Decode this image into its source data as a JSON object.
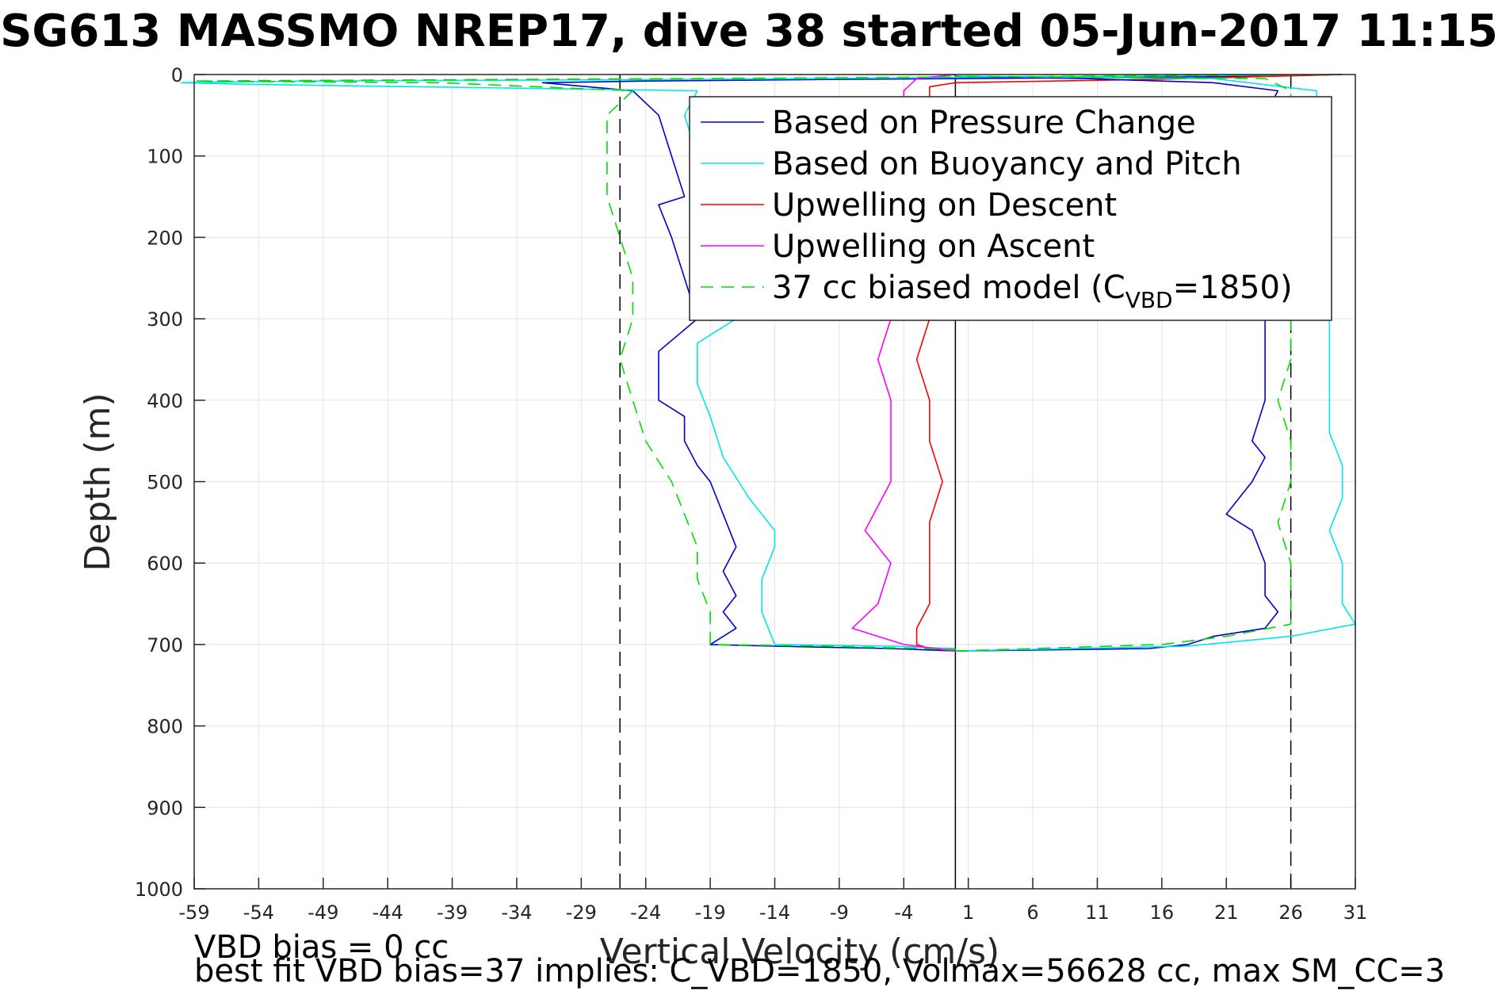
{
  "chart_data": {
    "type": "line",
    "title": "SG613 MASSMO NREP17, dive 38 started 05-Jun-2017 11:15",
    "xlabel": "Vertical Velocity (cm/s)",
    "ylabel": "Depth (m)",
    "xlim": [
      -59,
      31
    ],
    "ylim": [
      0,
      1000
    ],
    "y_reversed": true,
    "xticks": [
      -59,
      -54,
      -49,
      -44,
      -39,
      -34,
      -29,
      -24,
      -19,
      -14,
      -9,
      -4,
      1,
      6,
      11,
      16,
      21,
      26,
      31
    ],
    "yticks": [
      0,
      100,
      200,
      300,
      400,
      500,
      600,
      700,
      800,
      900,
      1000
    ],
    "grid": true,
    "legend_position": "top-right",
    "reference_lines": [
      {
        "kind": "vertical",
        "x": -26,
        "style": "dashed",
        "color": "#000000"
      },
      {
        "kind": "vertical",
        "x": 0,
        "style": "solid",
        "color": "#000000"
      },
      {
        "kind": "vertical",
        "x": 26,
        "style": "dashed",
        "color": "#000000"
      }
    ],
    "series": [
      {
        "name": "Based on Pressure Change",
        "color": "#0000cc",
        "style": "solid",
        "points": [
          [
            30,
            0
          ],
          [
            24,
            2
          ],
          [
            10,
            4
          ],
          [
            -10,
            6
          ],
          [
            -24,
            8
          ],
          [
            -32,
            10
          ],
          [
            -25,
            20
          ],
          [
            -23,
            50
          ],
          [
            -22,
            100
          ],
          [
            -21,
            150
          ],
          [
            -23,
            160
          ],
          [
            -22,
            200
          ],
          [
            -21,
            250
          ],
          [
            -20,
            300
          ],
          [
            -23,
            340
          ],
          [
            -23,
            400
          ],
          [
            -21,
            420
          ],
          [
            -21,
            450
          ],
          [
            -20,
            480
          ],
          [
            -19,
            500
          ],
          [
            -18,
            540
          ],
          [
            -17,
            580
          ],
          [
            -18,
            610
          ],
          [
            -17,
            640
          ],
          [
            -18,
            660
          ],
          [
            -17,
            680
          ],
          [
            -19,
            700
          ],
          [
            -14,
            702
          ],
          [
            -5,
            705
          ],
          [
            0,
            708
          ]
        ]
      },
      {
        "name": "Based on Buoyancy and Pitch",
        "color": "#00e5ee",
        "style": "solid",
        "points": [
          [
            30,
            0
          ],
          [
            -20,
            6
          ],
          [
            -50,
            8
          ],
          [
            -60,
            10
          ],
          [
            -55,
            12
          ],
          [
            -20,
            20
          ],
          [
            -21,
            50
          ],
          [
            -20,
            100
          ],
          [
            -20,
            150
          ],
          [
            -19,
            200
          ],
          [
            -18,
            250
          ],
          [
            -17,
            300
          ],
          [
            -20,
            330
          ],
          [
            -20,
            380
          ],
          [
            -19,
            420
          ],
          [
            -18,
            470
          ],
          [
            -16,
            520
          ],
          [
            -14,
            560
          ],
          [
            -14,
            580
          ],
          [
            -15,
            620
          ],
          [
            -15,
            660
          ],
          [
            -14,
            700
          ],
          [
            -5,
            702
          ],
          [
            0,
            705
          ]
        ]
      },
      {
        "name": "Upwelling on Descent",
        "color": "#ff0000",
        "style": "solid",
        "points": [
          [
            30,
            0
          ],
          [
            15,
            6
          ],
          [
            0,
            10
          ],
          [
            -2,
            15
          ],
          [
            -2,
            30
          ],
          [
            -2,
            100
          ],
          [
            -2,
            200
          ],
          [
            -2,
            300
          ],
          [
            -3,
            350
          ],
          [
            -2,
            400
          ],
          [
            -2,
            450
          ],
          [
            -1,
            500
          ],
          [
            -2,
            550
          ],
          [
            -2,
            600
          ],
          [
            -2,
            650
          ],
          [
            -3,
            680
          ],
          [
            -3,
            700
          ],
          [
            -2,
            705
          ],
          [
            0,
            708
          ]
        ]
      },
      {
        "name": "Upwelling on Ascent",
        "color": "#ff00ff",
        "style": "solid",
        "points": [
          [
            0,
            708
          ],
          [
            -4,
            700
          ],
          [
            -6,
            690
          ],
          [
            -8,
            680
          ],
          [
            -6,
            650
          ],
          [
            -5,
            600
          ],
          [
            -7,
            560
          ],
          [
            -6,
            530
          ],
          [
            -5,
            500
          ],
          [
            -5,
            450
          ],
          [
            -5,
            400
          ],
          [
            -6,
            350
          ],
          [
            -5,
            300
          ],
          [
            -4,
            200
          ],
          [
            -4,
            100
          ],
          [
            -4,
            50
          ],
          [
            -4,
            20
          ],
          [
            -3,
            5
          ],
          [
            0,
            0
          ]
        ]
      },
      {
        "name": "37 cc biased model (C_VBD=1850)",
        "color": "#00dd00",
        "style": "dashed",
        "points": [
          [
            30,
            0
          ],
          [
            -20,
            5
          ],
          [
            -59,
            8
          ],
          [
            -40,
            10
          ],
          [
            -25,
            20
          ],
          [
            -27,
            50
          ],
          [
            -27,
            100
          ],
          [
            -27,
            150
          ],
          [
            -26,
            200
          ],
          [
            -25,
            250
          ],
          [
            -25,
            300
          ],
          [
            -26,
            350
          ],
          [
            -25,
            400
          ],
          [
            -24,
            450
          ],
          [
            -22,
            500
          ],
          [
            -21,
            540
          ],
          [
            -20,
            580
          ],
          [
            -20,
            620
          ],
          [
            -19,
            660
          ],
          [
            -19,
            700
          ],
          [
            -10,
            702
          ],
          [
            0,
            706
          ]
        ]
      },
      {
        "name": "Based on Pressure Change",
        "color": "#0000cc",
        "style": "solid",
        "points": [
          [
            0,
            708
          ],
          [
            15,
            705
          ],
          [
            18,
            700
          ],
          [
            20,
            690
          ],
          [
            24,
            680
          ],
          [
            25,
            660
          ],
          [
            24,
            640
          ],
          [
            24,
            600
          ],
          [
            23,
            560
          ],
          [
            21,
            540
          ],
          [
            22,
            520
          ],
          [
            23,
            500
          ],
          [
            24,
            470
          ],
          [
            23,
            450
          ],
          [
            24,
            400
          ],
          [
            24,
            350
          ],
          [
            24,
            300
          ],
          [
            24,
            200
          ],
          [
            25,
            100
          ],
          [
            24,
            50
          ],
          [
            25,
            20
          ],
          [
            20,
            10
          ],
          [
            10,
            5
          ],
          [
            0,
            2
          ]
        ]
      },
      {
        "name": "Based on Buoyancy and Pitch",
        "color": "#00e5ee",
        "style": "solid",
        "points": [
          [
            0,
            708
          ],
          [
            18,
            702
          ],
          [
            26,
            690
          ],
          [
            31,
            675
          ],
          [
            30,
            650
          ],
          [
            30,
            600
          ],
          [
            29,
            560
          ],
          [
            30,
            520
          ],
          [
            30,
            480
          ],
          [
            29,
            440
          ],
          [
            29,
            400
          ],
          [
            29,
            350
          ],
          [
            29,
            300
          ],
          [
            29,
            200
          ],
          [
            29,
            150
          ],
          [
            28,
            100
          ],
          [
            28,
            50
          ],
          [
            28,
            20
          ],
          [
            20,
            5
          ],
          [
            0,
            2
          ]
        ]
      },
      {
        "name": "37 cc biased model (C_VBD=1850)",
        "color": "#00dd00",
        "style": "dashed",
        "points": [
          [
            0,
            708
          ],
          [
            16,
            700
          ],
          [
            21,
            690
          ],
          [
            26,
            675
          ],
          [
            26,
            650
          ],
          [
            26,
            600
          ],
          [
            25,
            550
          ],
          [
            26,
            500
          ],
          [
            26,
            450
          ],
          [
            25,
            400
          ],
          [
            26,
            350
          ],
          [
            26,
            300
          ],
          [
            26,
            200
          ],
          [
            27,
            100
          ],
          [
            26,
            50
          ],
          [
            26,
            20
          ],
          [
            24,
            5
          ],
          [
            0,
            2
          ]
        ]
      }
    ],
    "legend_entries": [
      {
        "label": "Based on Pressure Change",
        "color": "#0000cc",
        "style": "solid"
      },
      {
        "label": "Based on Buoyancy and Pitch",
        "color": "#00e5ee",
        "style": "solid"
      },
      {
        "label": "Upwelling on Descent",
        "color": "#ff0000",
        "style": "solid"
      },
      {
        "label": "Upwelling on Ascent",
        "color": "#ff00ff",
        "style": "solid"
      },
      {
        "label_main": "37 cc biased model (C",
        "label_sub": "VBD",
        "label_end": "=1850)",
        "color": "#00dd00",
        "style": "dashed"
      }
    ],
    "annotations": [
      "VBD bias = 0 cc",
      "best fit VBD bias=37 implies: C_VBD=1850, Volmax=56628 cc, max SM_CC=3"
    ]
  }
}
